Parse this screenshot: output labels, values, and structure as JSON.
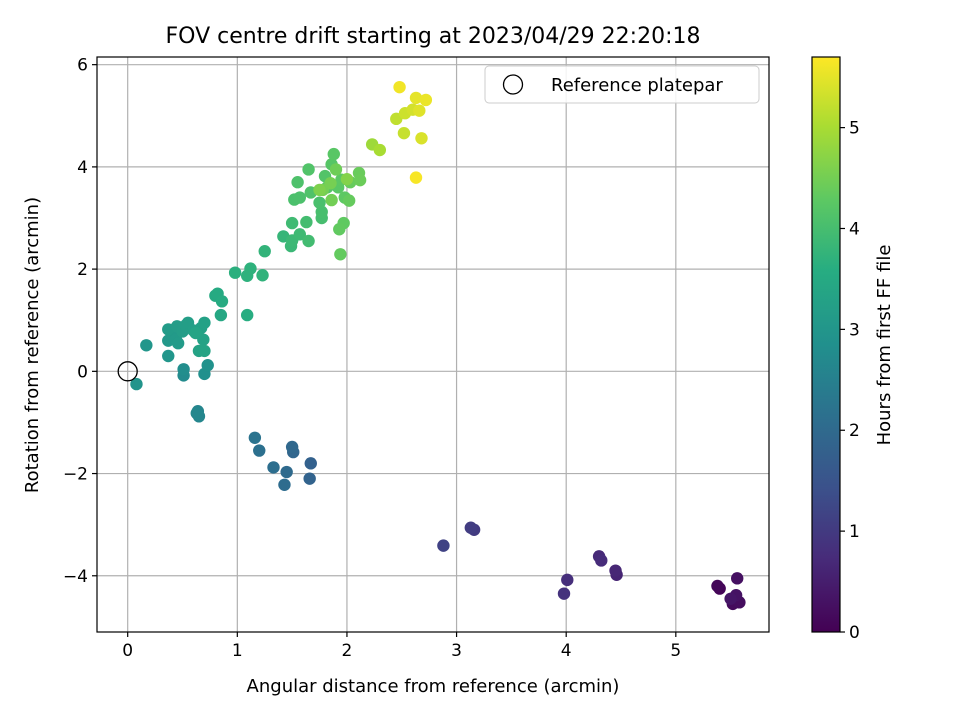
{
  "chart_data": {
    "type": "scatter",
    "title": "FOV centre drift starting at 2023/04/29 22:20:18",
    "xlabel": "Angular distance from reference (arcmin)",
    "ylabel": "Rotation from reference (arcmin)",
    "xlim": [
      -0.28,
      5.85
    ],
    "ylim": [
      -5.1,
      6.15
    ],
    "x_ticks": [
      0,
      1,
      2,
      3,
      4,
      5
    ],
    "x_tick_labels": [
      "0",
      "1",
      "2",
      "3",
      "4",
      "5"
    ],
    "y_ticks": [
      -4,
      -2,
      0,
      2,
      4,
      6
    ],
    "y_tick_labels": [
      "−4",
      "−2",
      "0",
      "2",
      "4",
      "6"
    ],
    "grid": true,
    "colorbar": {
      "label": "Hours from first FF file",
      "colormap": "viridis",
      "range": [
        0,
        5.7
      ],
      "ticks": [
        0,
        1,
        2,
        3,
        4,
        5
      ],
      "tick_labels": [
        "0",
        "1",
        "2",
        "3",
        "4",
        "5"
      ]
    },
    "legend": {
      "placement": "top-right",
      "entries": [
        {
          "label": "Reference platepar",
          "marker": "open-circle",
          "x": 0,
          "y": 0
        }
      ]
    },
    "points": [
      {
        "x": 5.4,
        "y": -4.25,
        "c": 0.05
      },
      {
        "x": 5.38,
        "y": -4.2,
        "c": 0.1
      },
      {
        "x": 5.52,
        "y": -4.55,
        "c": 0.15
      },
      {
        "x": 5.58,
        "y": -4.52,
        "c": 0.2
      },
      {
        "x": 5.56,
        "y": -4.05,
        "c": 0.25
      },
      {
        "x": 5.55,
        "y": -4.38,
        "c": 0.3
      },
      {
        "x": 5.5,
        "y": -4.45,
        "c": 0.35
      },
      {
        "x": 4.46,
        "y": -3.98,
        "c": 0.6
      },
      {
        "x": 4.45,
        "y": -3.9,
        "c": 0.65
      },
      {
        "x": 4.3,
        "y": -3.62,
        "c": 0.7
      },
      {
        "x": 4.32,
        "y": -3.7,
        "c": 0.75
      },
      {
        "x": 4.01,
        "y": -4.08,
        "c": 0.8
      },
      {
        "x": 3.98,
        "y": -4.35,
        "c": 0.85
      },
      {
        "x": 3.16,
        "y": -3.1,
        "c": 1.0
      },
      {
        "x": 3.13,
        "y": -3.06,
        "c": 1.05
      },
      {
        "x": 2.88,
        "y": -3.41,
        "c": 1.15
      },
      {
        "x": 1.67,
        "y": -1.8,
        "c": 1.8
      },
      {
        "x": 1.66,
        "y": -2.1,
        "c": 1.85
      },
      {
        "x": 1.51,
        "y": -1.58,
        "c": 1.9
      },
      {
        "x": 1.5,
        "y": -1.48,
        "c": 1.95
      },
      {
        "x": 1.45,
        "y": -1.97,
        "c": 2.0
      },
      {
        "x": 1.43,
        "y": -2.22,
        "c": 2.05
      },
      {
        "x": 1.33,
        "y": -1.88,
        "c": 2.1
      },
      {
        "x": 1.2,
        "y": -1.55,
        "c": 2.15
      },
      {
        "x": 1.16,
        "y": -1.3,
        "c": 2.2
      },
      {
        "x": 0.64,
        "y": -0.78,
        "c": 2.6
      },
      {
        "x": 0.65,
        "y": -0.88,
        "c": 2.62
      },
      {
        "x": 0.63,
        "y": -0.82,
        "c": 2.65
      },
      {
        "x": 0.51,
        "y": -0.08,
        "c": 2.75
      },
      {
        "x": 0.51,
        "y": 0.04,
        "c": 2.8
      },
      {
        "x": 0.7,
        "y": -0.05,
        "c": 2.85
      },
      {
        "x": 0.73,
        "y": 0.12,
        "c": 2.9
      },
      {
        "x": 0.08,
        "y": -0.25,
        "c": 2.95
      },
      {
        "x": 0.17,
        "y": 0.51,
        "c": 3.0
      },
      {
        "x": 0.37,
        "y": 0.3,
        "c": 3.0
      },
      {
        "x": 0.37,
        "y": 0.6,
        "c": 3.05
      },
      {
        "x": 0.4,
        "y": 0.72,
        "c": 3.08
      },
      {
        "x": 0.44,
        "y": 0.62,
        "c": 3.1
      },
      {
        "x": 0.46,
        "y": 0.55,
        "c": 3.12
      },
      {
        "x": 0.37,
        "y": 0.82,
        "c": 3.14
      },
      {
        "x": 0.45,
        "y": 0.88,
        "c": 3.16
      },
      {
        "x": 0.5,
        "y": 0.78,
        "c": 3.18
      },
      {
        "x": 0.53,
        "y": 0.9,
        "c": 3.2
      },
      {
        "x": 0.55,
        "y": 0.95,
        "c": 3.22
      },
      {
        "x": 0.6,
        "y": 0.8,
        "c": 3.24
      },
      {
        "x": 0.67,
        "y": 0.85,
        "c": 3.26
      },
      {
        "x": 0.7,
        "y": 0.95,
        "c": 3.28
      },
      {
        "x": 0.69,
        "y": 0.62,
        "c": 3.3
      },
      {
        "x": 0.65,
        "y": 0.4,
        "c": 3.32
      },
      {
        "x": 0.7,
        "y": 0.4,
        "c": 3.34
      },
      {
        "x": 0.62,
        "y": 0.75,
        "c": 3.36
      },
      {
        "x": 0.85,
        "y": 1.1,
        "c": 3.45
      },
      {
        "x": 0.8,
        "y": 1.48,
        "c": 3.5
      },
      {
        "x": 0.82,
        "y": 1.52,
        "c": 3.52
      },
      {
        "x": 0.86,
        "y": 1.37,
        "c": 3.55
      },
      {
        "x": 1.09,
        "y": 1.1,
        "c": 3.6
      },
      {
        "x": 0.98,
        "y": 1.93,
        "c": 3.65
      },
      {
        "x": 1.09,
        "y": 1.87,
        "c": 3.68
      },
      {
        "x": 1.12,
        "y": 2.01,
        "c": 3.7
      },
      {
        "x": 1.23,
        "y": 1.88,
        "c": 3.72
      },
      {
        "x": 1.25,
        "y": 2.35,
        "c": 3.75
      },
      {
        "x": 1.42,
        "y": 2.64,
        "c": 3.8
      },
      {
        "x": 1.49,
        "y": 2.45,
        "c": 3.85
      },
      {
        "x": 1.5,
        "y": 2.56,
        "c": 3.87
      },
      {
        "x": 1.57,
        "y": 2.68,
        "c": 3.9
      },
      {
        "x": 1.5,
        "y": 2.9,
        "c": 3.92
      },
      {
        "x": 1.65,
        "y": 2.55,
        "c": 3.95
      },
      {
        "x": 1.63,
        "y": 2.92,
        "c": 3.97
      },
      {
        "x": 1.77,
        "y": 3.0,
        "c": 4.0
      },
      {
        "x": 1.77,
        "y": 3.12,
        "c": 4.02
      },
      {
        "x": 1.75,
        "y": 3.3,
        "c": 4.04
      },
      {
        "x": 1.52,
        "y": 3.36,
        "c": 4.06
      },
      {
        "x": 1.57,
        "y": 3.4,
        "c": 4.08
      },
      {
        "x": 1.55,
        "y": 3.7,
        "c": 4.1
      },
      {
        "x": 1.67,
        "y": 3.5,
        "c": 4.12
      },
      {
        "x": 1.65,
        "y": 3.95,
        "c": 4.14
      },
      {
        "x": 1.8,
        "y": 3.82,
        "c": 4.16
      },
      {
        "x": 1.82,
        "y": 3.6,
        "c": 4.18
      },
      {
        "x": 1.86,
        "y": 4.05,
        "c": 4.2
      },
      {
        "x": 1.88,
        "y": 4.25,
        "c": 4.22
      },
      {
        "x": 1.92,
        "y": 3.6,
        "c": 4.24
      },
      {
        "x": 1.95,
        "y": 3.75,
        "c": 4.26
      },
      {
        "x": 1.98,
        "y": 3.4,
        "c": 4.28
      },
      {
        "x": 1.97,
        "y": 2.9,
        "c": 4.3
      },
      {
        "x": 1.93,
        "y": 2.78,
        "c": 4.32
      },
      {
        "x": 1.94,
        "y": 2.29,
        "c": 4.34
      },
      {
        "x": 2.02,
        "y": 3.34,
        "c": 4.36
      },
      {
        "x": 2.03,
        "y": 3.7,
        "c": 4.38
      },
      {
        "x": 2.11,
        "y": 3.88,
        "c": 4.4
      },
      {
        "x": 2.12,
        "y": 3.74,
        "c": 4.42
      },
      {
        "x": 1.9,
        "y": 3.95,
        "c": 4.45
      },
      {
        "x": 1.86,
        "y": 3.35,
        "c": 4.48
      },
      {
        "x": 1.78,
        "y": 3.55,
        "c": 4.5
      },
      {
        "x": 1.85,
        "y": 3.68,
        "c": 4.52
      },
      {
        "x": 1.75,
        "y": 3.55,
        "c": 4.6
      },
      {
        "x": 2.0,
        "y": 3.76,
        "c": 4.65
      },
      {
        "x": 2.23,
        "y": 4.44,
        "c": 4.9
      },
      {
        "x": 2.3,
        "y": 4.33,
        "c": 5.0
      },
      {
        "x": 2.45,
        "y": 4.94,
        "c": 5.2
      },
      {
        "x": 2.52,
        "y": 4.66,
        "c": 5.25
      },
      {
        "x": 2.53,
        "y": 5.05,
        "c": 5.3
      },
      {
        "x": 2.6,
        "y": 5.12,
        "c": 5.35
      },
      {
        "x": 2.68,
        "y": 4.56,
        "c": 5.4
      },
      {
        "x": 2.66,
        "y": 5.1,
        "c": 5.45
      },
      {
        "x": 2.63,
        "y": 5.35,
        "c": 5.5
      },
      {
        "x": 2.72,
        "y": 5.31,
        "c": 5.55
      },
      {
        "x": 2.48,
        "y": 5.56,
        "c": 5.6
      },
      {
        "x": 2.63,
        "y": 3.79,
        "c": 5.65
      }
    ]
  }
}
